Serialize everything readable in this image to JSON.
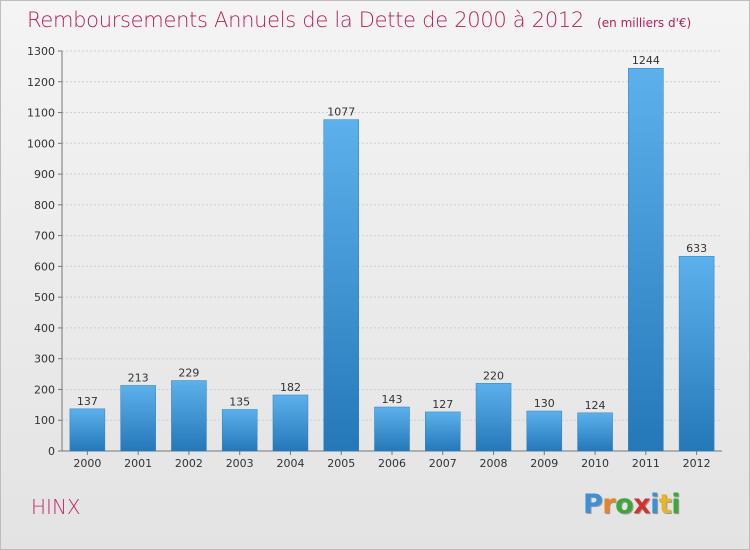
{
  "title": "Remboursements Annuels de la Dette de 2000 à 2012",
  "unit_note": "(en milliers d'€)",
  "commune": "HINX",
  "logo": {
    "letters": [
      "P",
      "r",
      "o",
      "x",
      "i",
      "t",
      "i"
    ],
    "colors": [
      "#3d8fd6",
      "#e8822a",
      "#3fa63a",
      "#d2322c",
      "#3d8fd6",
      "#e8b52a",
      "#3fa63a"
    ]
  },
  "chart_data": {
    "type": "bar",
    "title": "Remboursements Annuels de la Dette de 2000 à 2012",
    "subtitle": "(en milliers d'€)",
    "xlabel": "",
    "ylabel": "",
    "categories": [
      "2000",
      "2001",
      "2002",
      "2003",
      "2004",
      "2005",
      "2006",
      "2007",
      "2008",
      "2009",
      "2010",
      "2011",
      "2012"
    ],
    "values": [
      137,
      213,
      229,
      135,
      182,
      1077,
      143,
      127,
      220,
      130,
      124,
      1244,
      633
    ],
    "ylim": [
      0,
      1300
    ],
    "yticks": [
      0,
      100,
      200,
      300,
      400,
      500,
      600,
      700,
      800,
      900,
      1000,
      1100,
      1200,
      1300
    ],
    "grid": true,
    "bar_color": "#3f9de0"
  }
}
